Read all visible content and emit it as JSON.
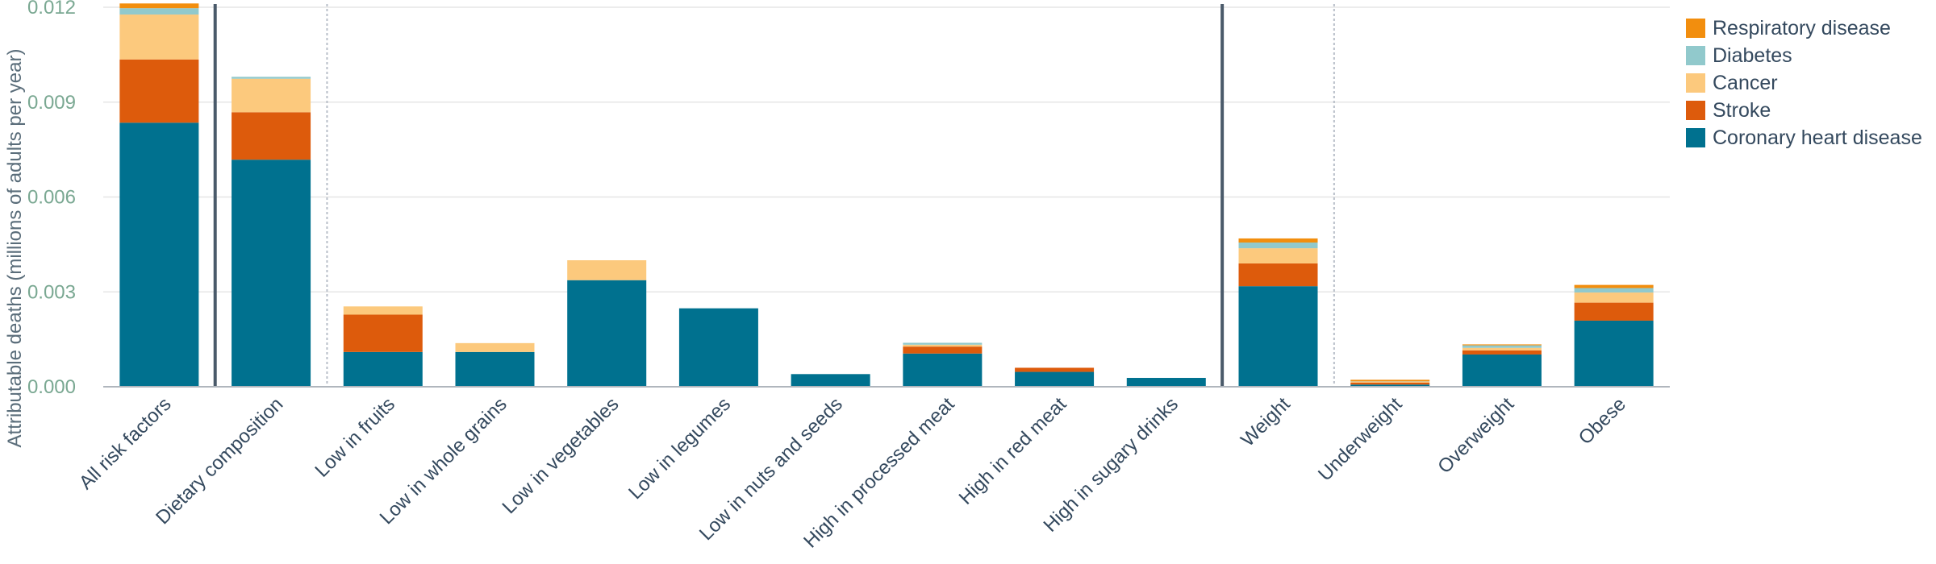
{
  "chart_data": {
    "type": "bar",
    "stacked": true,
    "ylabel": "Attributable deaths (millions of adults per year)",
    "xlabel": "",
    "ylim": [
      0,
      0.012
    ],
    "yticks": [
      "0.000",
      "0.003",
      "0.006",
      "0.009",
      "0.012"
    ],
    "ytick_values": [
      0,
      0.003,
      0.006,
      0.009,
      0.012
    ],
    "grid": true,
    "legend_position": "top-right",
    "categories": [
      "All risk factors",
      "Dietary composition",
      "Low in fruits",
      "Low in whole grains",
      "Low in vegetables",
      "Low in legumes",
      "Low in nuts and seeds",
      "High in processed meat",
      "High in red meat",
      "High in sugary drinks",
      "Weight",
      "Underweight",
      "Overweight",
      "Obese"
    ],
    "series": [
      {
        "name": "Coronary heart disease",
        "color": "#00718f",
        "values": [
          0.00835,
          0.00718,
          0.0011,
          0.0011,
          0.00337,
          0.00248,
          0.0004,
          0.00105,
          0.00047,
          0.00028,
          0.00318,
          7e-05,
          0.00102,
          0.00209
        ]
      },
      {
        "name": "Stroke",
        "color": "#dd5b0c",
        "values": [
          0.002,
          0.0015,
          0.00118,
          0.0,
          0.0,
          0.0,
          0.0,
          0.00022,
          0.00013,
          0.0,
          0.00072,
          6e-05,
          0.00013,
          0.00057
        ]
      },
      {
        "name": "Cancer",
        "color": "#fcc97d",
        "values": [
          0.00142,
          0.00106,
          0.00026,
          0.00028,
          0.00063,
          0.0,
          0.0,
          6e-05,
          0.0,
          0.0,
          0.00048,
          3e-05,
          8e-05,
          0.00032
        ]
      },
      {
        "name": "Diabetes",
        "color": "#91c9cc",
        "values": [
          0.0002,
          6e-05,
          0.0,
          0.0,
          0.0,
          0.0,
          0.0,
          6e-05,
          0.0,
          0.0,
          0.00018,
          1e-05,
          8e-05,
          0.00014
        ]
      },
      {
        "name": "Respiratory disease",
        "color": "#f28e0e",
        "values": [
          0.00015,
          0.0,
          0.0,
          0.0,
          0.0,
          0.0,
          0.0,
          0.0,
          0.0,
          0.0,
          0.00013,
          5e-05,
          3e-05,
          0.0001
        ]
      }
    ],
    "legend_order": [
      "Respiratory disease",
      "Diabetes",
      "Cancer",
      "Stroke",
      "Coronary heart disease"
    ],
    "separators": [
      {
        "after_category": 0,
        "style": "solid"
      },
      {
        "after_category": 1,
        "style": "dotted"
      },
      {
        "after_category": 9,
        "style": "solid"
      },
      {
        "after_category": 10,
        "style": "dotted"
      }
    ]
  }
}
